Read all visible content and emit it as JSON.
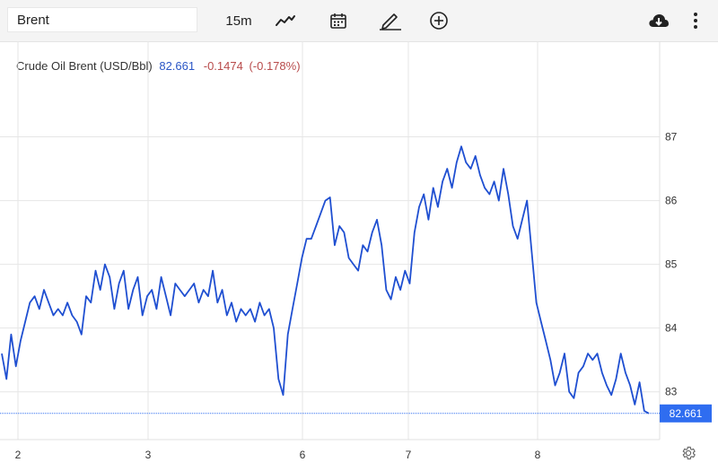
{
  "toolbar": {
    "symbol": "Brent",
    "interval": "15m",
    "icons": [
      "line-chart-icon",
      "calendar-icon",
      "draw-icon",
      "add-indicator-icon",
      "download-icon",
      "more-icon"
    ]
  },
  "legend": {
    "name": "Crude Oil Brent (USD/Bbl)",
    "last": "82.661",
    "change": "-0.1474",
    "change_pct": "(-0.178%)"
  },
  "colors": {
    "line": "#1f4fd1",
    "price_tag": "#2f6df0",
    "negative": "#b84b4b",
    "grid": "#e6e6e6"
  },
  "chart_data": {
    "type": "line",
    "ylim": [
      82.25,
      88.5
    ],
    "y_ticks": [
      "83",
      "84",
      "85",
      "86",
      "87"
    ],
    "x_ticks": [
      "2",
      "3",
      "6",
      "7",
      "8"
    ],
    "current_price": 82.661,
    "current_price_label": "82.661",
    "grid": true,
    "series": [
      {
        "values": [
          83.6,
          83.2,
          83.9,
          83.4,
          83.8,
          84.1,
          84.4,
          84.5,
          84.3,
          84.6,
          84.4,
          84.2,
          84.3,
          84.2,
          84.4,
          84.2,
          84.1,
          83.9,
          84.5,
          84.4,
          84.9,
          84.6,
          85.0,
          84.8,
          84.3,
          84.7,
          84.9,
          84.3,
          84.6,
          84.8,
          84.2,
          84.5,
          84.6,
          84.3,
          84.8,
          84.5,
          84.2,
          84.7,
          84.6,
          84.5,
          84.6,
          84.7,
          84.4,
          84.6,
          84.5,
          84.9,
          84.4,
          84.6,
          84.2,
          84.4,
          84.1,
          84.3,
          84.2,
          84.3,
          84.1,
          84.4,
          84.2,
          84.3,
          84.0,
          83.2,
          82.95,
          83.9,
          84.3,
          84.7,
          85.1,
          85.4,
          85.4,
          85.6,
          85.8,
          86.0,
          86.05,
          85.3,
          85.6,
          85.5,
          85.1,
          85.0,
          84.9,
          85.3,
          85.2,
          85.5,
          85.7,
          85.3,
          84.6,
          84.45,
          84.8,
          84.6,
          84.9,
          84.7,
          85.5,
          85.9,
          86.1,
          85.7,
          86.2,
          85.9,
          86.3,
          86.5,
          86.2,
          86.6,
          86.85,
          86.6,
          86.5,
          86.7,
          86.4,
          86.2,
          86.1,
          86.3,
          86.0,
          86.5,
          86.1,
          85.6,
          85.4,
          85.7,
          86.0,
          85.2,
          84.4,
          84.1,
          83.8,
          83.5,
          83.1,
          83.3,
          83.6,
          83.0,
          82.9,
          83.3,
          83.4,
          83.6,
          83.5,
          83.6,
          83.3,
          83.1,
          82.95,
          83.2,
          83.6,
          83.3,
          83.1,
          82.8,
          83.15,
          82.7,
          82.661
        ]
      }
    ]
  }
}
